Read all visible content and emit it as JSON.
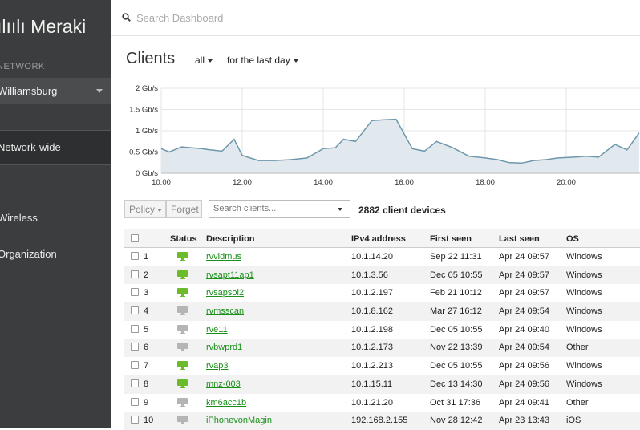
{
  "sidebar": {
    "logo": "ılıılı Meraki",
    "network_label": "NETWORK",
    "network_value": "Williamsburg",
    "nav": [
      {
        "label": "Network-wide",
        "active": true
      },
      {
        "label": "Wireless",
        "active": false
      },
      {
        "label": "Organization",
        "active": false
      }
    ]
  },
  "topbar": {
    "search_placeholder": "Search Dashboard"
  },
  "page": {
    "title": "Clients",
    "filter_scope": "all",
    "filter_time": "for the last day"
  },
  "chart_data": {
    "type": "area",
    "title": "",
    "xlabel": "",
    "ylabel": "",
    "ylim": [
      0,
      2
    ],
    "y_ticks": [
      "0 Gb/s",
      "0.5 Gb/s",
      "1 Gb/s",
      "1.5 Gb/s",
      "2 Gb/s"
    ],
    "x_ticks": [
      "10:00",
      "12:00",
      "14:00",
      "16:00",
      "18:00",
      "20:00"
    ],
    "x_hours": [
      10,
      10.2,
      10.5,
      11,
      11.2,
      11.5,
      11.8,
      12.0,
      12.4,
      12.8,
      13.2,
      13.6,
      14.0,
      14.3,
      14.5,
      14.8,
      15.2,
      15.5,
      15.8,
      16.2,
      16.5,
      16.8,
      17.2,
      17.6,
      18.0,
      18.3,
      18.6,
      18.9,
      19.2,
      19.5,
      19.8,
      20.2,
      20.5,
      20.8,
      21.2,
      21.5,
      21.8
    ],
    "values": [
      0.58,
      0.5,
      0.62,
      0.58,
      0.55,
      0.52,
      0.8,
      0.42,
      0.3,
      0.3,
      0.32,
      0.36,
      0.58,
      0.6,
      0.8,
      0.75,
      1.24,
      1.26,
      1.27,
      0.58,
      0.52,
      0.75,
      0.6,
      0.4,
      0.36,
      0.32,
      0.25,
      0.24,
      0.3,
      0.32,
      0.36,
      0.38,
      0.4,
      0.38,
      0.68,
      0.55,
      0.95
    ]
  },
  "toolbar": {
    "policy_label": "Policy",
    "forget_label": "Forget",
    "client_search_placeholder": "Search clients...",
    "client_count": "2882 client devices"
  },
  "table": {
    "headers": {
      "status": "Status",
      "description": "Description",
      "ipv4": "IPv4 address",
      "first_seen": "First seen",
      "last_seen": "Last seen",
      "os": "OS"
    },
    "rows": [
      {
        "n": "1",
        "online": true,
        "description": "rvvidmus",
        "ipv4": "10.1.14.20",
        "first_seen": "Sep 22 11:31",
        "last_seen": "Apr 24 09:57",
        "os": "Windows"
      },
      {
        "n": "2",
        "online": true,
        "description": "rvsapt11ap1",
        "ipv4": "10.1.3.56",
        "first_seen": "Dec 05 10:55",
        "last_seen": "Apr 24 09:57",
        "os": "Windows"
      },
      {
        "n": "3",
        "online": true,
        "description": "rvsapsol2",
        "ipv4": "10.1.2.197",
        "first_seen": "Feb 21 10:12",
        "last_seen": "Apr 24 09:57",
        "os": "Windows"
      },
      {
        "n": "4",
        "online": false,
        "description": "rvmsscan",
        "ipv4": "10.1.8.162",
        "first_seen": "Mar 27 16:12",
        "last_seen": "Apr 24 09:54",
        "os": "Windows"
      },
      {
        "n": "5",
        "online": false,
        "description": "rve11",
        "ipv4": "10.1.2.198",
        "first_seen": "Dec 05 10:55",
        "last_seen": "Apr 24 09:40",
        "os": "Windows"
      },
      {
        "n": "6",
        "online": false,
        "description": "rvbwprd1",
        "ipv4": "10.1.2.173",
        "first_seen": "Nov 22 13:39",
        "last_seen": "Apr 24 09:54",
        "os": "Other"
      },
      {
        "n": "7",
        "online": true,
        "description": "rvap3",
        "ipv4": "10.1.2.213",
        "first_seen": "Dec 05 10:55",
        "last_seen": "Apr 24 09:56",
        "os": "Windows"
      },
      {
        "n": "8",
        "online": true,
        "description": "mnz-003",
        "ipv4": "10.1.15.11",
        "first_seen": "Dec 13 14:30",
        "last_seen": "Apr 24 09:56",
        "os": "Windows"
      },
      {
        "n": "9",
        "online": false,
        "description": "km6acc1b",
        "ipv4": "10.1.21.20",
        "first_seen": "Oct 31 17:36",
        "last_seen": "Apr 24 09:41",
        "os": "Other"
      },
      {
        "n": "10",
        "online": false,
        "description": "iPhonevonMagin",
        "ipv4": "192.168.2.155",
        "first_seen": "Nov 28 12:42",
        "last_seen": "Apr 23 13:43",
        "os": "iOS"
      }
    ]
  },
  "colors": {
    "online": "#6cbb2b",
    "offline": "#b5b5b5",
    "link": "#1a8f1a",
    "chart_line": "#6e97ac",
    "chart_fill": "#e1e9ee",
    "sidebar_bg": "#3b3d3e"
  },
  "icons": {
    "search": "search-icon",
    "status": "monitor-icon"
  }
}
